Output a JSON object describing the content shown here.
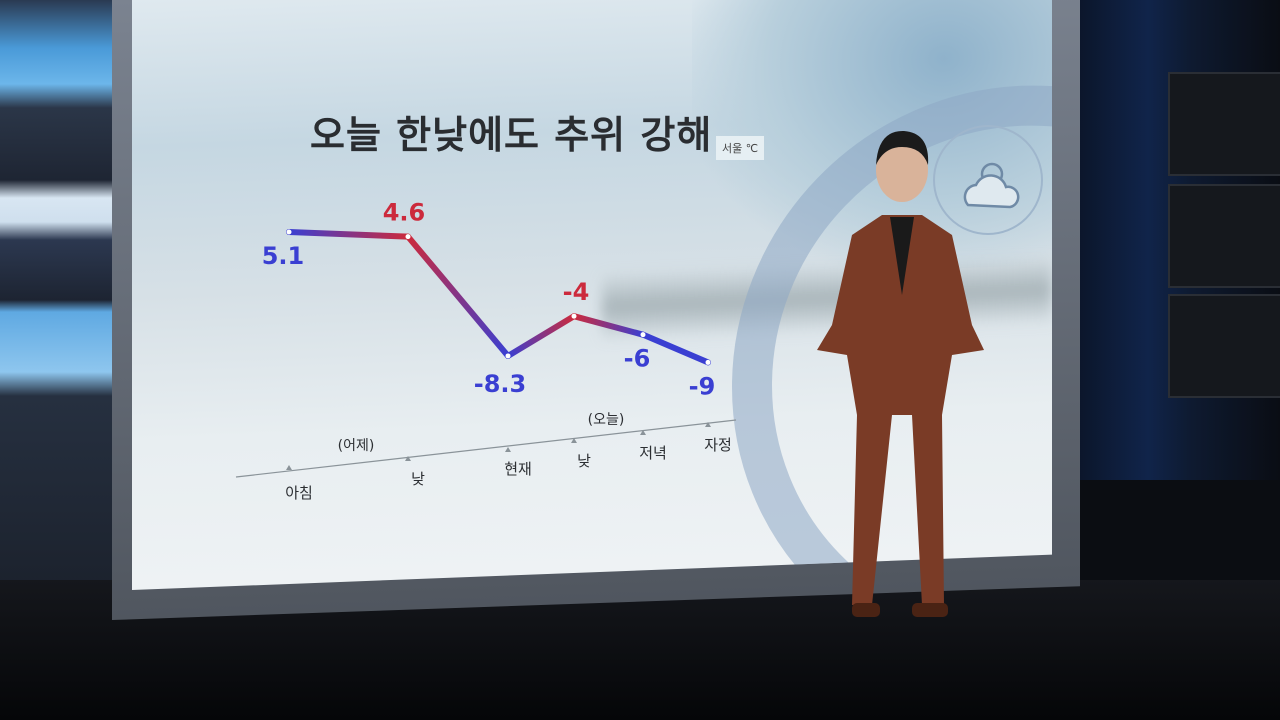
{
  "chart_data": {
    "type": "line",
    "title": "오늘 한낮에도 추위 강해",
    "unit_label": "서울 ℃",
    "categories": [
      "아침",
      "낮",
      "현재",
      "낮",
      "저녁",
      "자정"
    ],
    "group_labels": [
      {
        "label": "(어제)",
        "categories": [
          "아침",
          "낮"
        ]
      },
      {
        "label": "(오늘)",
        "categories": [
          "현재",
          "낮",
          "저녁",
          "자정"
        ]
      }
    ],
    "values": [
      5.1,
      4.6,
      -8.3,
      -4,
      -6,
      -9
    ],
    "value_labels": [
      "5.1",
      "4.6",
      "-8.3",
      "-4",
      "-6",
      "-9"
    ],
    "point_colors": [
      "#3a3fd2",
      "#cc2a3c",
      "#3a3fd2",
      "#cc2a3c",
      "#3a3fd2",
      "#3a3fd2"
    ],
    "colors": {
      "cold": "#3a3fd2",
      "warm": "#cc2a3c"
    },
    "grid": false
  }
}
